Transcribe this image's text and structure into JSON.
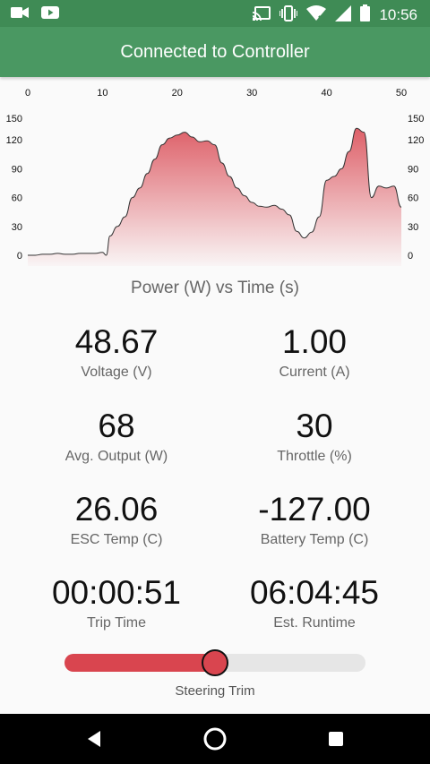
{
  "status_bar": {
    "time": "10:56",
    "icons": [
      "video-camera-icon",
      "youtube-icon",
      "cast-icon",
      "vibrate-icon",
      "wifi-icon",
      "signal-icon",
      "battery-icon"
    ]
  },
  "app_bar": {
    "title": "Connected to Controller"
  },
  "chart_data": {
    "type": "area",
    "title": "Power (W) vs Time (s)",
    "xlabel": "",
    "ylabel": "",
    "xlim": [
      0,
      50
    ],
    "ylim": [
      0,
      150
    ],
    "x_ticks": [
      0,
      10,
      20,
      30,
      40,
      50
    ],
    "y_ticks": [
      0,
      30,
      60,
      90,
      120,
      150
    ],
    "grid": false,
    "color": "#d9454f",
    "x": [
      0,
      1,
      2,
      3,
      4,
      5,
      6,
      7,
      8,
      9,
      10,
      10.5,
      11,
      12,
      13,
      14,
      15,
      16,
      17,
      18,
      19,
      20,
      21,
      22,
      23,
      24,
      25,
      26,
      27,
      28,
      29,
      30,
      31,
      32,
      33,
      34,
      35,
      36,
      37,
      38,
      39,
      40,
      41,
      42,
      43,
      44,
      45,
      46,
      47,
      48,
      49,
      50
    ],
    "values": [
      0,
      0,
      1,
      1,
      2,
      1,
      1,
      2,
      2,
      2,
      3,
      0,
      20,
      30,
      40,
      60,
      70,
      85,
      100,
      115,
      122,
      125,
      128,
      123,
      118,
      119,
      115,
      96,
      82,
      70,
      62,
      55,
      51,
      50,
      52,
      48,
      42,
      25,
      18,
      24,
      40,
      78,
      82,
      90,
      108,
      132,
      128,
      60,
      72,
      70,
      72,
      50
    ]
  },
  "stats": [
    {
      "value": "48.67",
      "label": "Voltage (V)"
    },
    {
      "value": "1.00",
      "label": "Current (A)"
    },
    {
      "value": "68",
      "label": "Avg. Output (W)"
    },
    {
      "value": "30",
      "label": "Throttle (%)"
    },
    {
      "value": "26.06",
      "label": "ESC Temp (C)"
    },
    {
      "value": "-127.00",
      "label": "Battery Temp (C)"
    },
    {
      "value": "00:00:51",
      "label": "Trip Time"
    },
    {
      "value": "06:04:45",
      "label": "Est. Runtime"
    }
  ],
  "steering": {
    "label": "Steering Trim",
    "level": 0.5
  },
  "nav_bar": {
    "icons": [
      "back-icon",
      "home-icon",
      "recents-icon"
    ]
  }
}
